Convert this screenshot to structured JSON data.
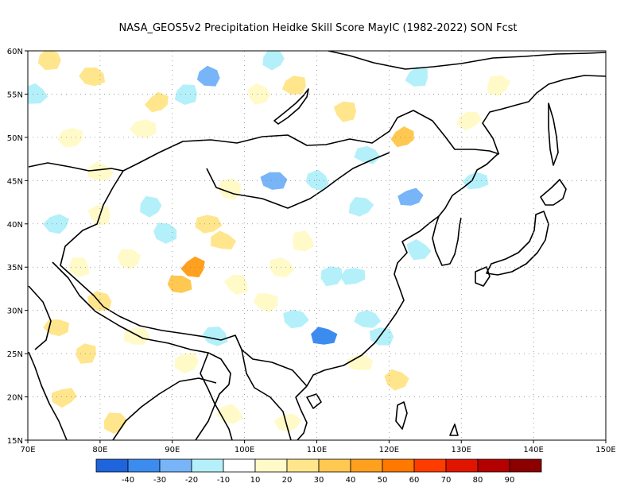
{
  "title": "NASA_GEOS5v2  Precipitation Heidke Skill Score MayIC (1982-2022) SON Fcst",
  "map": {
    "lat_labels": [
      "60N",
      "55N",
      "50N",
      "45N",
      "40N",
      "35N",
      "30N",
      "25N",
      "20N",
      "15N"
    ],
    "lon_labels": [
      "70E",
      "80E",
      "90E",
      "100E",
      "110E",
      "120E",
      "130E",
      "140E",
      "150E"
    ],
    "lat_range": [
      15,
      60
    ],
    "lon_range": [
      70,
      150
    ],
    "grid_lines": "dotted"
  },
  "colorbar": {
    "colors": [
      "#1e64dc",
      "#3c8cf0",
      "#78b4f8",
      "#b4f0fa",
      "#ffffff",
      "#fffac8",
      "#ffe68c",
      "#ffc850",
      "#ffa01e",
      "#ff7800",
      "#ff3c00",
      "#e11400",
      "#b40000",
      "#8c0000"
    ],
    "labels": [
      "-40",
      "-30",
      "-20",
      "-10",
      "10",
      "20",
      "30",
      "40",
      "50",
      "60",
      "70",
      "80",
      "90"
    ]
  },
  "fields": [
    {
      "lon": 71,
      "lat": 55,
      "v": -15
    },
    {
      "lon": 73,
      "lat": 59,
      "v": 25
    },
    {
      "lon": 74,
      "lat": 40,
      "v": -15
    },
    {
      "lon": 76,
      "lat": 50,
      "v": 15
    },
    {
      "lon": 79,
      "lat": 57,
      "v": 25
    },
    {
      "lon": 80,
      "lat": 46,
      "v": 15
    },
    {
      "lon": 86,
      "lat": 51,
      "v": 15
    },
    {
      "lon": 88,
      "lat": 54,
      "v": 25
    },
    {
      "lon": 92,
      "lat": 55,
      "v": -15
    },
    {
      "lon": 95,
      "lat": 57,
      "v": -25
    },
    {
      "lon": 102,
      "lat": 55,
      "v": 15
    },
    {
      "lon": 104,
      "lat": 59,
      "v": -15
    },
    {
      "lon": 107,
      "lat": 56,
      "v": 25
    },
    {
      "lon": 114,
      "lat": 53,
      "v": 25
    },
    {
      "lon": 122,
      "lat": 50,
      "v": 30
    },
    {
      "lon": 124,
      "lat": 57,
      "v": -15
    },
    {
      "lon": 117,
      "lat": 48,
      "v": -15
    },
    {
      "lon": 131,
      "lat": 52,
      "v": 15
    },
    {
      "lon": 132,
      "lat": 45,
      "v": -15
    },
    {
      "lon": 123,
      "lat": 43,
      "v": -20
    },
    {
      "lon": 116,
      "lat": 42,
      "v": -15
    },
    {
      "lon": 110,
      "lat": 45,
      "v": -15
    },
    {
      "lon": 104,
      "lat": 45,
      "v": -20
    },
    {
      "lon": 98,
      "lat": 44,
      "v": 15
    },
    {
      "lon": 95,
      "lat": 40,
      "v": 25
    },
    {
      "lon": 89,
      "lat": 39,
      "v": -15
    },
    {
      "lon": 87,
      "lat": 42,
      "v": -15
    },
    {
      "lon": 97,
      "lat": 38,
      "v": 25
    },
    {
      "lon": 93,
      "lat": 35,
      "v": 40
    },
    {
      "lon": 91,
      "lat": 33,
      "v": 30
    },
    {
      "lon": 99,
      "lat": 33,
      "v": 15
    },
    {
      "lon": 105,
      "lat": 35,
      "v": 15
    },
    {
      "lon": 108,
      "lat": 38,
      "v": 15
    },
    {
      "lon": 112,
      "lat": 34,
      "v": -15
    },
    {
      "lon": 115,
      "lat": 34,
      "v": -15
    },
    {
      "lon": 111,
      "lat": 27,
      "v": -30
    },
    {
      "lon": 107,
      "lat": 29,
      "v": -15
    },
    {
      "lon": 117,
      "lat": 29,
      "v": -15
    },
    {
      "lon": 119,
      "lat": 27,
      "v": -15
    },
    {
      "lon": 116,
      "lat": 24,
      "v": 15
    },
    {
      "lon": 103,
      "lat": 31,
      "v": 15
    },
    {
      "lon": 96,
      "lat": 27,
      "v": -15
    },
    {
      "lon": 92,
      "lat": 24,
      "v": 15
    },
    {
      "lon": 85,
      "lat": 27,
      "v": 15
    },
    {
      "lon": 78,
      "lat": 25,
      "v": 25
    },
    {
      "lon": 75,
      "lat": 20,
      "v": 25
    },
    {
      "lon": 74,
      "lat": 28,
      "v": 20
    },
    {
      "lon": 80,
      "lat": 31,
      "v": 25
    },
    {
      "lon": 84,
      "lat": 36,
      "v": 15
    },
    {
      "lon": 77,
      "lat": 35,
      "v": 15
    },
    {
      "lon": 80,
      "lat": 41,
      "v": 15
    },
    {
      "lon": 82,
      "lat": 17,
      "v": 25
    },
    {
      "lon": 98,
      "lat": 18,
      "v": 15
    },
    {
      "lon": 106,
      "lat": 17,
      "v": 15
    },
    {
      "lon": 121,
      "lat": 22,
      "v": 20
    },
    {
      "lon": 124,
      "lat": 37,
      "v": -15
    },
    {
      "lon": 135,
      "lat": 56,
      "v": 15
    }
  ]
}
